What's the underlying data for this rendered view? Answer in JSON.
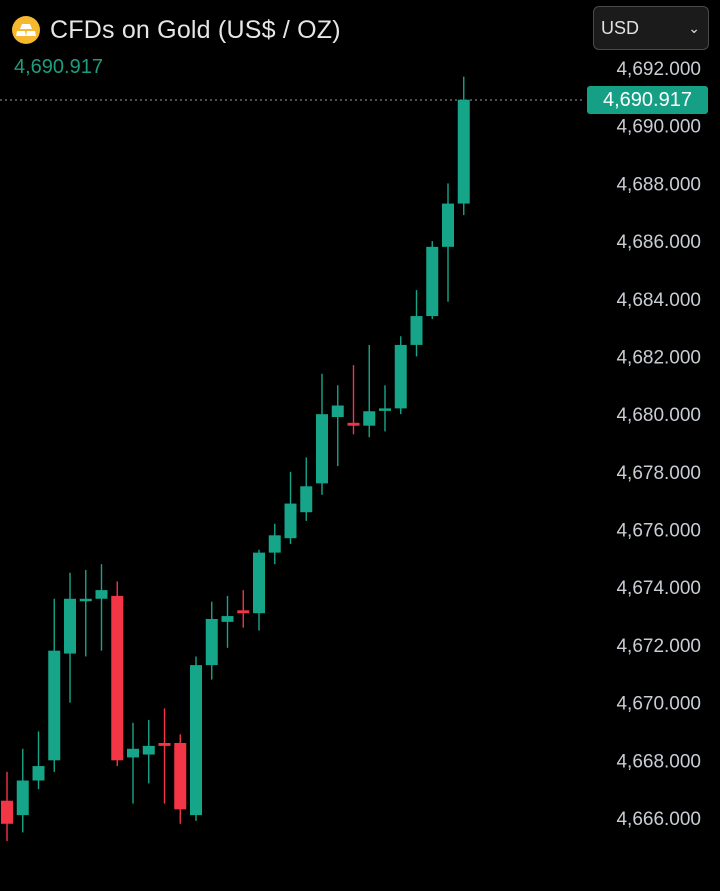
{
  "header": {
    "title": "CFDs on Gold (US$ / OZ)",
    "icon": "gold-bars-icon",
    "last_price": "4,690.917"
  },
  "currency_select": {
    "value": "USD",
    "icon": "chevron-down-icon"
  },
  "price_tag": "4,690.917",
  "colors": {
    "up": "#17a589",
    "down": "#f23645",
    "background": "#000000",
    "accent": "#15a085"
  },
  "chart_data": {
    "type": "candlestick",
    "ylim": [
      4665.0,
      4692.6
    ],
    "y_ticks": [
      4692,
      4690,
      4688,
      4686,
      4684,
      4682,
      4680,
      4678,
      4676,
      4674,
      4672,
      4670,
      4668,
      4666
    ],
    "y_tick_labels": [
      "4,692.000",
      "4,690.000",
      "4,688.000",
      "4,686.000",
      "4,684.000",
      "4,682.000",
      "4,680.000",
      "4,678.000",
      "4,676.000",
      "4,674.000",
      "4,672.000",
      "4,670.000",
      "4,668.000",
      "4,666.000"
    ],
    "last_price_line": 4690.917,
    "candles": [
      {
        "o": 4666.6,
        "c": 4665.8,
        "h": 4667.6,
        "l": 4665.2
      },
      {
        "o": 4666.1,
        "c": 4667.3,
        "h": 4668.4,
        "l": 4665.5
      },
      {
        "o": 4667.3,
        "c": 4667.8,
        "h": 4669.0,
        "l": 4667.0
      },
      {
        "o": 4668.0,
        "c": 4671.8,
        "h": 4673.6,
        "l": 4667.6
      },
      {
        "o": 4671.7,
        "c": 4673.6,
        "h": 4674.5,
        "l": 4670.0
      },
      {
        "o": 4673.6,
        "c": 4673.6,
        "h": 4674.6,
        "l": 4671.6
      },
      {
        "o": 4673.6,
        "c": 4673.9,
        "h": 4674.8,
        "l": 4671.8
      },
      {
        "o": 4673.7,
        "c": 4668.0,
        "h": 4674.2,
        "l": 4667.8
      },
      {
        "o": 4668.1,
        "c": 4668.4,
        "h": 4669.3,
        "l": 4666.5
      },
      {
        "o": 4668.2,
        "c": 4668.5,
        "h": 4669.4,
        "l": 4667.2
      },
      {
        "o": 4668.6,
        "c": 4668.5,
        "h": 4669.8,
        "l": 4666.5
      },
      {
        "o": 4668.6,
        "c": 4666.3,
        "h": 4668.9,
        "l": 4665.8
      },
      {
        "o": 4666.1,
        "c": 4671.3,
        "h": 4671.6,
        "l": 4665.9
      },
      {
        "o": 4671.3,
        "c": 4672.9,
        "h": 4673.5,
        "l": 4670.8
      },
      {
        "o": 4672.8,
        "c": 4673.0,
        "h": 4673.7,
        "l": 4671.9
      },
      {
        "o": 4673.2,
        "c": 4673.1,
        "h": 4673.9,
        "l": 4672.6
      },
      {
        "o": 4673.1,
        "c": 4675.2,
        "h": 4675.3,
        "l": 4672.5
      },
      {
        "o": 4675.2,
        "c": 4675.8,
        "h": 4676.2,
        "l": 4674.8
      },
      {
        "o": 4675.7,
        "c": 4676.9,
        "h": 4678.0,
        "l": 4675.5
      },
      {
        "o": 4676.6,
        "c": 4677.5,
        "h": 4678.5,
        "l": 4676.3
      },
      {
        "o": 4677.6,
        "c": 4680.0,
        "h": 4681.4,
        "l": 4677.2
      },
      {
        "o": 4679.9,
        "c": 4680.3,
        "h": 4681.0,
        "l": 4678.2
      },
      {
        "o": 4679.7,
        "c": 4679.6,
        "h": 4681.7,
        "l": 4679.3
      },
      {
        "o": 4679.6,
        "c": 4680.1,
        "h": 4682.4,
        "l": 4679.2
      },
      {
        "o": 4680.2,
        "c": 4680.2,
        "h": 4681.0,
        "l": 4679.4
      },
      {
        "o": 4680.2,
        "c": 4682.4,
        "h": 4682.7,
        "l": 4680.0
      },
      {
        "o": 4682.4,
        "c": 4683.4,
        "h": 4684.3,
        "l": 4682.0
      },
      {
        "o": 4683.4,
        "c": 4685.8,
        "h": 4686.0,
        "l": 4683.3
      },
      {
        "o": 4685.8,
        "c": 4687.3,
        "h": 4688.0,
        "l": 4683.9
      },
      {
        "o": 4687.3,
        "c": 4690.9,
        "h": 4691.7,
        "l": 4686.9
      }
    ]
  }
}
